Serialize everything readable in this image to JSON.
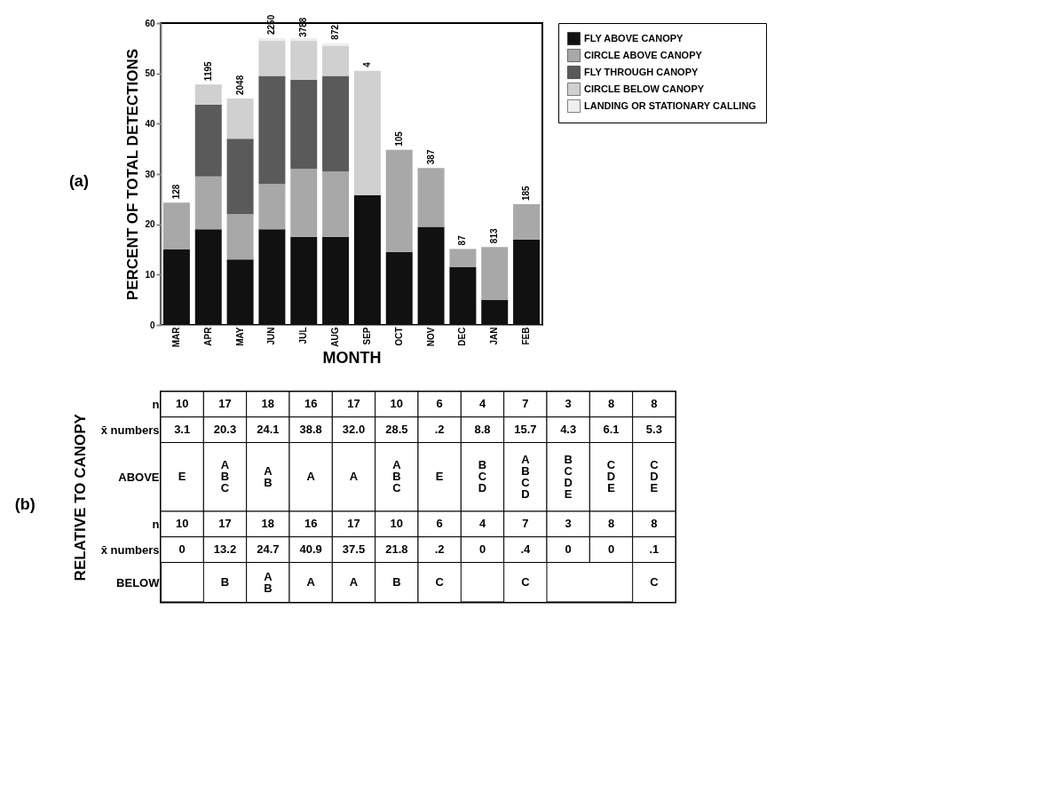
{
  "chart_data": [
    {
      "type": "bar",
      "title": "(a)",
      "xlabel": "MONTH",
      "ylabel": "PERCENT OF TOTAL DETECTIONS",
      "stacked": true,
      "legend": "right",
      "categories": [
        "MAR",
        "APR",
        "MAY",
        "JUN",
        "JUL",
        "AUG",
        "SEP",
        "OCT",
        "NOV",
        "DEC",
        "JAN",
        "FEB"
      ],
      "series": [
        {
          "name": "FLY ABOVE CANOPY",
          "color": "#111111",
          "values": [
            15,
            19,
            13,
            19,
            17.5,
            17.5,
            25.8,
            14.5,
            19.5,
            11.5,
            5,
            17
          ]
        },
        {
          "name": "CIRCLE ABOVE CANOPY",
          "color": "#a8a8a8",
          "values": [
            9.3,
            10.5,
            9,
            9,
            13.5,
            13,
            0,
            20.3,
            11.7,
            3.6,
            10.5,
            7
          ]
        },
        {
          "name": "FLY THROUGH CANOPY",
          "color": "#5a5a5a",
          "values": [
            0,
            14.3,
            15,
            21.5,
            17.7,
            19,
            0,
            0,
            0,
            0,
            0,
            0
          ]
        },
        {
          "name": "CIRCLE BELOW CANOPY",
          "color": "#d0d0d0",
          "values": [
            0,
            4,
            8,
            7,
            7.8,
            6,
            24.7,
            0,
            0,
            0,
            0,
            0
          ]
        },
        {
          "name": "LANDING OR STATIONARY CALLING",
          "color": "#eeeeee",
          "values": [
            0,
            0,
            0,
            0.5,
            0.5,
            0.5,
            0,
            0,
            0,
            0,
            0,
            0
          ]
        }
      ],
      "ylim": [
        0,
        60
      ],
      "yticks": [
        0,
        10,
        20,
        30,
        40,
        50,
        60
      ],
      "annotations": [
        {
          "text": "128",
          "x": "MAR",
          "y": 24.3
        },
        {
          "text": "1195",
          "x": "APR",
          "y": 47.8
        },
        {
          "text": "2048",
          "x": "MAY",
          "y": 45
        },
        {
          "text": "2250",
          "x": "JUN",
          "y": 57
        },
        {
          "text": "3788",
          "x": "JUL",
          "y": 56.5
        },
        {
          "text": "872.",
          "x": "AUG",
          "y": 56
        },
        {
          "text": "4",
          "x": "SEP",
          "y": 50.5
        },
        {
          "text": "105",
          "x": "OCT",
          "y": 34.8
        },
        {
          "text": "387",
          "x": "NOV",
          "y": 31.2
        },
        {
          "text": "87",
          "x": "DEC",
          "y": 15.1
        },
        {
          "text": "813",
          "x": "JAN",
          "y": 15.5
        },
        {
          "text": "185",
          "x": "FEB",
          "y": 24
        }
      ]
    },
    {
      "type": "other",
      "title": "(b)",
      "ylabel": "RELATIVE TO CANOPY",
      "categories": [
        null,
        null,
        null,
        null,
        null,
        null,
        null,
        null,
        null,
        null,
        null,
        null
      ],
      "y_categories": [
        "n",
        "x̄ numbers",
        "ABOVE",
        "n",
        "x̄ numbers",
        "BELOW"
      ],
      "cell_labels": [
        [
          "10",
          "17",
          "18",
          "16",
          "17",
          "10",
          "6",
          "4",
          "7",
          "3",
          "8",
          "8"
        ],
        [
          "3.1",
          "20.3",
          "24.1",
          "38.8",
          "32.0",
          "28.5",
          ".2",
          "8.8",
          "15.7",
          "4.3",
          "6.1",
          "5.3"
        ],
        [
          "E",
          "A B C",
          "A B",
          "A",
          "A",
          "A B C",
          "E",
          "B C D",
          "A B C D",
          "B C D E",
          "C D E",
          "C D E"
        ],
        [
          "10",
          "17",
          "18",
          "16",
          "17",
          "10",
          "6",
          "4",
          "7",
          "3",
          "8",
          "8"
        ],
        [
          "0",
          "13.2",
          "24.7",
          "40.9",
          "37.5",
          "21.8",
          ".2",
          "0",
          ".4",
          "0",
          "0",
          ".1"
        ],
        [
          null,
          "B",
          "A B",
          "A",
          "A",
          "B",
          "C",
          null,
          "C",
          null,
          null,
          "C"
        ]
      ]
    }
  ]
}
